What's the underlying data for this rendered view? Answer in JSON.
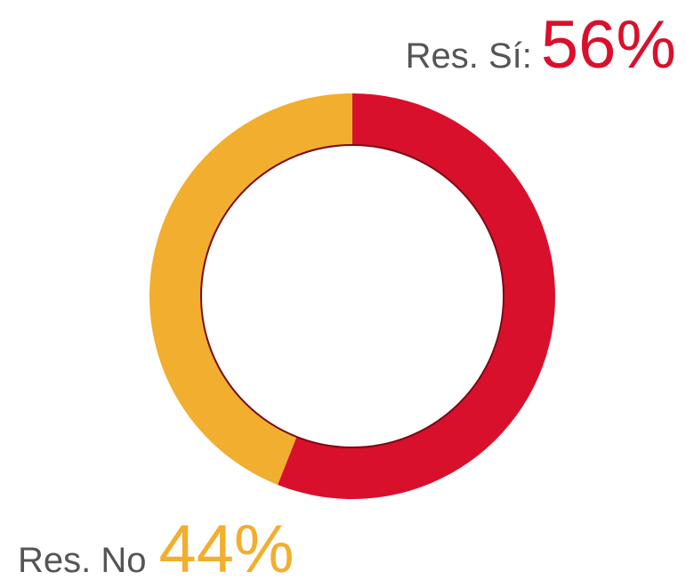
{
  "chart_data": {
    "type": "donut",
    "categories": [
      "Res. Sí:",
      "Res. No"
    ],
    "values": [
      56,
      44
    ],
    "value_labels": [
      "56%",
      "44%"
    ],
    "colors": [
      "#d9102c",
      "#f2ae2e"
    ]
  }
}
